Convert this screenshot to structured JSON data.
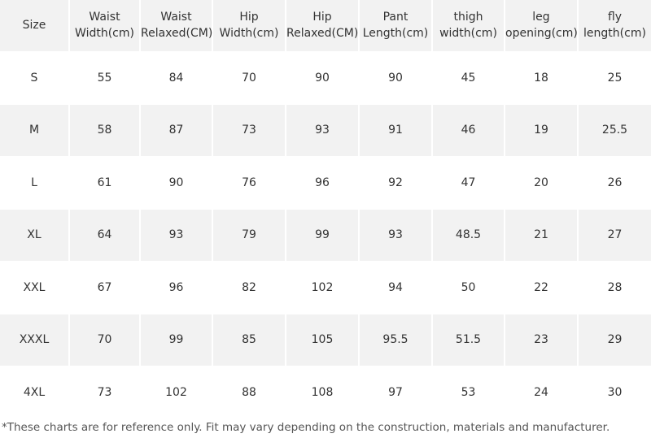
{
  "table": {
    "header": [
      "Size",
      "Waist\nWidth(cm)",
      "Waist\nRelaxed(CM)",
      "Hip\nWidth(cm)",
      "Hip\nRelaxed(CM)",
      "Pant\nLength(cm)",
      "thigh\nwidth(cm)",
      "leg\nopening(cm)",
      "fly\nlength(cm)"
    ],
    "rows": [
      [
        "S",
        55,
        84,
        70,
        90,
        90,
        45,
        18,
        25
      ],
      [
        "M",
        58,
        87,
        73,
        93,
        91,
        46,
        19,
        25.5
      ],
      [
        "L",
        61,
        90,
        76,
        96,
        92,
        47,
        20,
        26
      ],
      [
        "XL",
        64,
        93,
        79,
        99,
        93,
        48.5,
        21,
        27
      ],
      [
        "XXL",
        67,
        96,
        82,
        102,
        94,
        50,
        22,
        28
      ],
      [
        "XXXL",
        70,
        99,
        85,
        105,
        95.5,
        51.5,
        23,
        29
      ],
      [
        "4XL",
        73,
        102,
        88,
        108,
        97,
        53,
        24,
        30
      ]
    ]
  },
  "footnote": "*These charts are for reference only. Fit may vary depending on the construction, materials and manufacturer."
}
